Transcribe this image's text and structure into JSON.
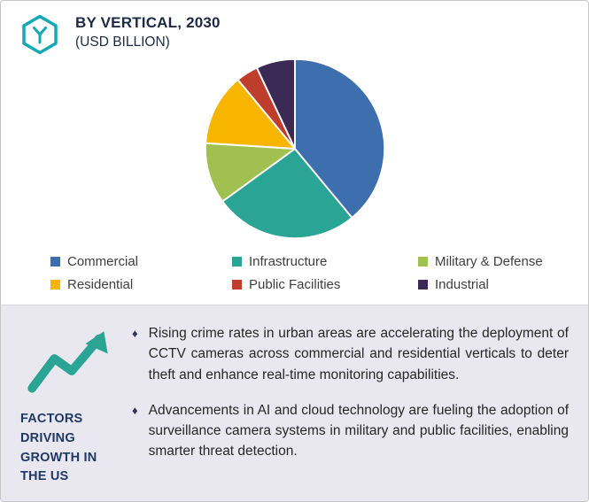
{
  "header": {
    "title": "BY VERTICAL, 2030",
    "subtitle": "(USD BILLION)"
  },
  "icons": {
    "logo": "hexagon-brand-icon",
    "factors": "line-chart-growth-icon",
    "bullet_glyph": "♦"
  },
  "colors": {
    "accent_teal": "#2aa493",
    "panel_background": "#e9e8f1",
    "heading_navy": "#203864",
    "logo_teal": "#13a8b4"
  },
  "chart_data": {
    "type": "pie",
    "title": "BY VERTICAL, 2030 (USD BILLION)",
    "start_angle_deg": 0,
    "clockwise": true,
    "legend_position": "bottom",
    "segments": [
      {
        "label": "Commercial",
        "value": 39,
        "color": "#3d6fae"
      },
      {
        "label": "Infrastructure",
        "value": 26,
        "color": "#29a495"
      },
      {
        "label": "Military & Defense",
        "value": 11,
        "color": "#a0c04f"
      },
      {
        "label": "Residential",
        "value": 13,
        "color": "#f7b500"
      },
      {
        "label": "Public Facilities",
        "value": 4,
        "color": "#bf3d2d"
      },
      {
        "label": "Industrial",
        "value": 7,
        "color": "#3b2a55"
      }
    ]
  },
  "factors": {
    "heading": "FACTORS DRIVING GROWTH IN THE US",
    "bullets": [
      "Rising crime rates in urban areas are accelerating the deployment of CCTV cameras across commercial and residential verticals to deter theft and enhance real-time monitoring capabilities.",
      "Advancements in AI and cloud technology are fueling the adoption of surveillance camera systems in military and public facilities, enabling smarter threat detection."
    ]
  }
}
